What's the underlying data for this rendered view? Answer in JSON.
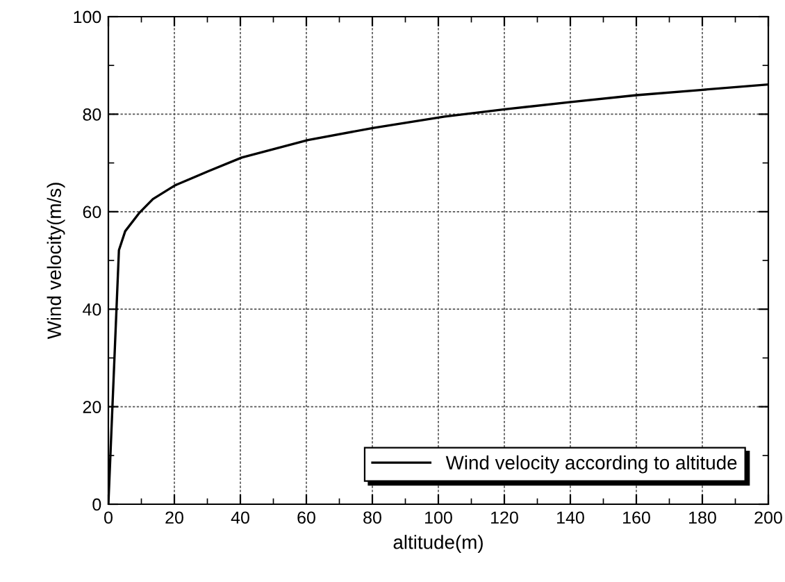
{
  "chart_data": {
    "type": "line",
    "xlabel": "altitude(m)",
    "ylabel": "Wind velocity(m/s)",
    "xlim": [
      0,
      200
    ],
    "ylim": [
      0,
      100
    ],
    "xticks": [
      0,
      20,
      40,
      60,
      80,
      100,
      120,
      140,
      160,
      180,
      200
    ],
    "yticks": [
      0,
      20,
      40,
      60,
      80,
      100
    ],
    "grid": true,
    "legend": "bottom right",
    "marker": "none",
    "line_style": "solid",
    "series": [
      {
        "name": "Wind velocity according to altitude",
        "color": "#000000",
        "x": [
          0,
          3.2,
          5.1,
          9.3,
          13.5,
          20.2,
          30.3,
          40.4,
          60.5,
          80.4,
          101.9,
          120.1,
          140.2,
          160.1,
          180.1,
          200
        ],
        "values": [
          0,
          52.1,
          56.0,
          59.7,
          62.6,
          65.4,
          68.3,
          71.1,
          74.7,
          77.2,
          79.5,
          81.0,
          82.5,
          83.9,
          85.0,
          86.1
        ]
      }
    ]
  }
}
